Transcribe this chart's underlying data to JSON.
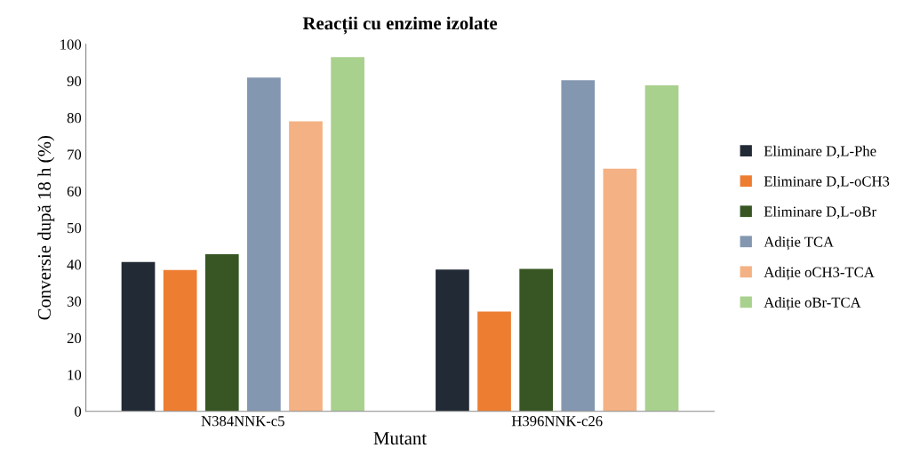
{
  "chart_data": {
    "type": "bar",
    "title": "Reacții cu enzime izolate",
    "xlabel": "Mutant",
    "ylabel": "Conversie după 18 h (%)",
    "categories": [
      "N384NNK-c5",
      "H396NNK-c26"
    ],
    "series": [
      {
        "name": "Eliminare D,L-Phe",
        "color": "#222a35",
        "values": [
          40.7,
          38.6
        ]
      },
      {
        "name": "Eliminare D,L-oCH3",
        "color": "#ed7d31",
        "values": [
          38.5,
          27.2
        ]
      },
      {
        "name": "Eliminare D,L-oBr",
        "color": "#375623",
        "values": [
          42.8,
          38.8
        ]
      },
      {
        "name": "Adiție TCA",
        "color": "#8497b0",
        "values": [
          90.9,
          90.2
        ]
      },
      {
        "name": "Adiție oCH3-TCA",
        "color": "#f4b183",
        "values": [
          79.0,
          66.1
        ]
      },
      {
        "name": "Adiție oBr-TCA",
        "color": "#a9d18e",
        "values": [
          96.5,
          88.8
        ]
      }
    ],
    "ylim": [
      0,
      100
    ],
    "yticks": [
      0,
      10,
      20,
      30,
      40,
      50,
      60,
      70,
      80,
      90,
      100
    ],
    "grid": false,
    "legend": "right"
  }
}
